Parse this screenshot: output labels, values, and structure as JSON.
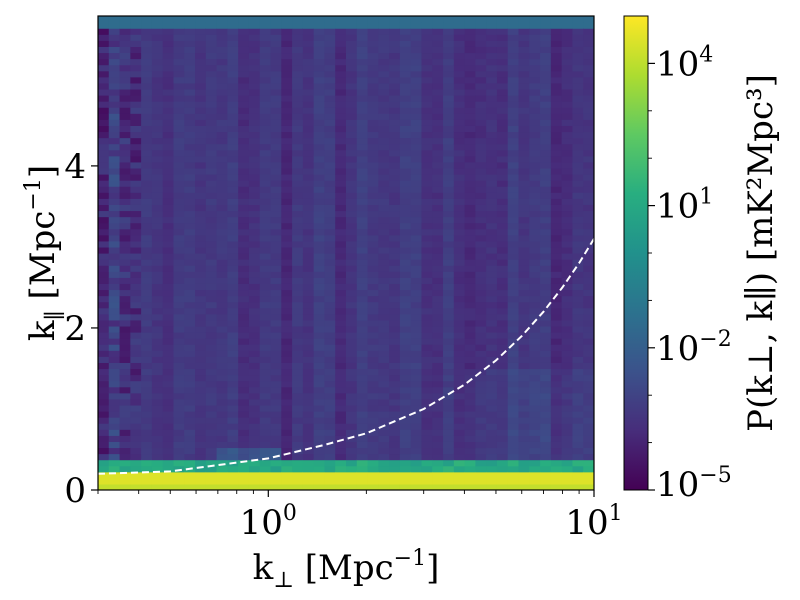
{
  "chart_data": {
    "type": "heatmap",
    "x_scale": "log",
    "x_range": [
      0.3,
      10
    ],
    "y_range": [
      0,
      5.85
    ],
    "xlabel": {
      "base": "k",
      "sub": "⊥",
      "units": " [Mpc",
      "exp": "−1",
      "close": "]"
    },
    "ylabel": {
      "base": "k",
      "sub": "∥",
      "units": " [Mpc",
      "exp": "−1",
      "close": "]"
    },
    "x_ticks": [
      {
        "value": 1,
        "base": "10",
        "exp": "0"
      },
      {
        "value": 10,
        "base": "10",
        "exp": "1"
      }
    ],
    "y_ticks": [
      {
        "value": 0,
        "label": "0"
      },
      {
        "value": 2,
        "label": "2"
      },
      {
        "value": 4,
        "label": "4"
      }
    ],
    "colorbar": {
      "colormap": "viridis",
      "scale": "log",
      "range": [
        1e-05,
        100000.0
      ],
      "label": "P(k⊥, k∥) [mK²Mpc³]",
      "ticks": [
        {
          "value": 1e-05,
          "base": "10",
          "exp": "−5"
        },
        {
          "value": 0.01,
          "base": "10",
          "exp": "−2"
        },
        {
          "value": 10,
          "base": "10",
          "exp": "1"
        },
        {
          "value": 10000.0,
          "base": "10",
          "exp": "4"
        }
      ]
    },
    "horizon_line": {
      "style": "dashed",
      "color": "#ffffff",
      "points": [
        [
          0.3,
          0.2
        ],
        [
          0.5,
          0.23
        ],
        [
          1.0,
          0.39
        ],
        [
          1.5,
          0.56
        ],
        [
          2.0,
          0.7
        ],
        [
          3.0,
          1.0
        ],
        [
          4.0,
          1.3
        ],
        [
          5.0,
          1.6
        ],
        [
          6.0,
          1.9
        ],
        [
          7.0,
          2.2
        ],
        [
          8.0,
          2.5
        ],
        [
          9.0,
          2.8
        ],
        [
          10.0,
          3.1
        ]
      ]
    },
    "foreground_band": {
      "k_par_max": 0.25,
      "log10_power": 4.5
    },
    "background_log10_power": -3.5
  }
}
